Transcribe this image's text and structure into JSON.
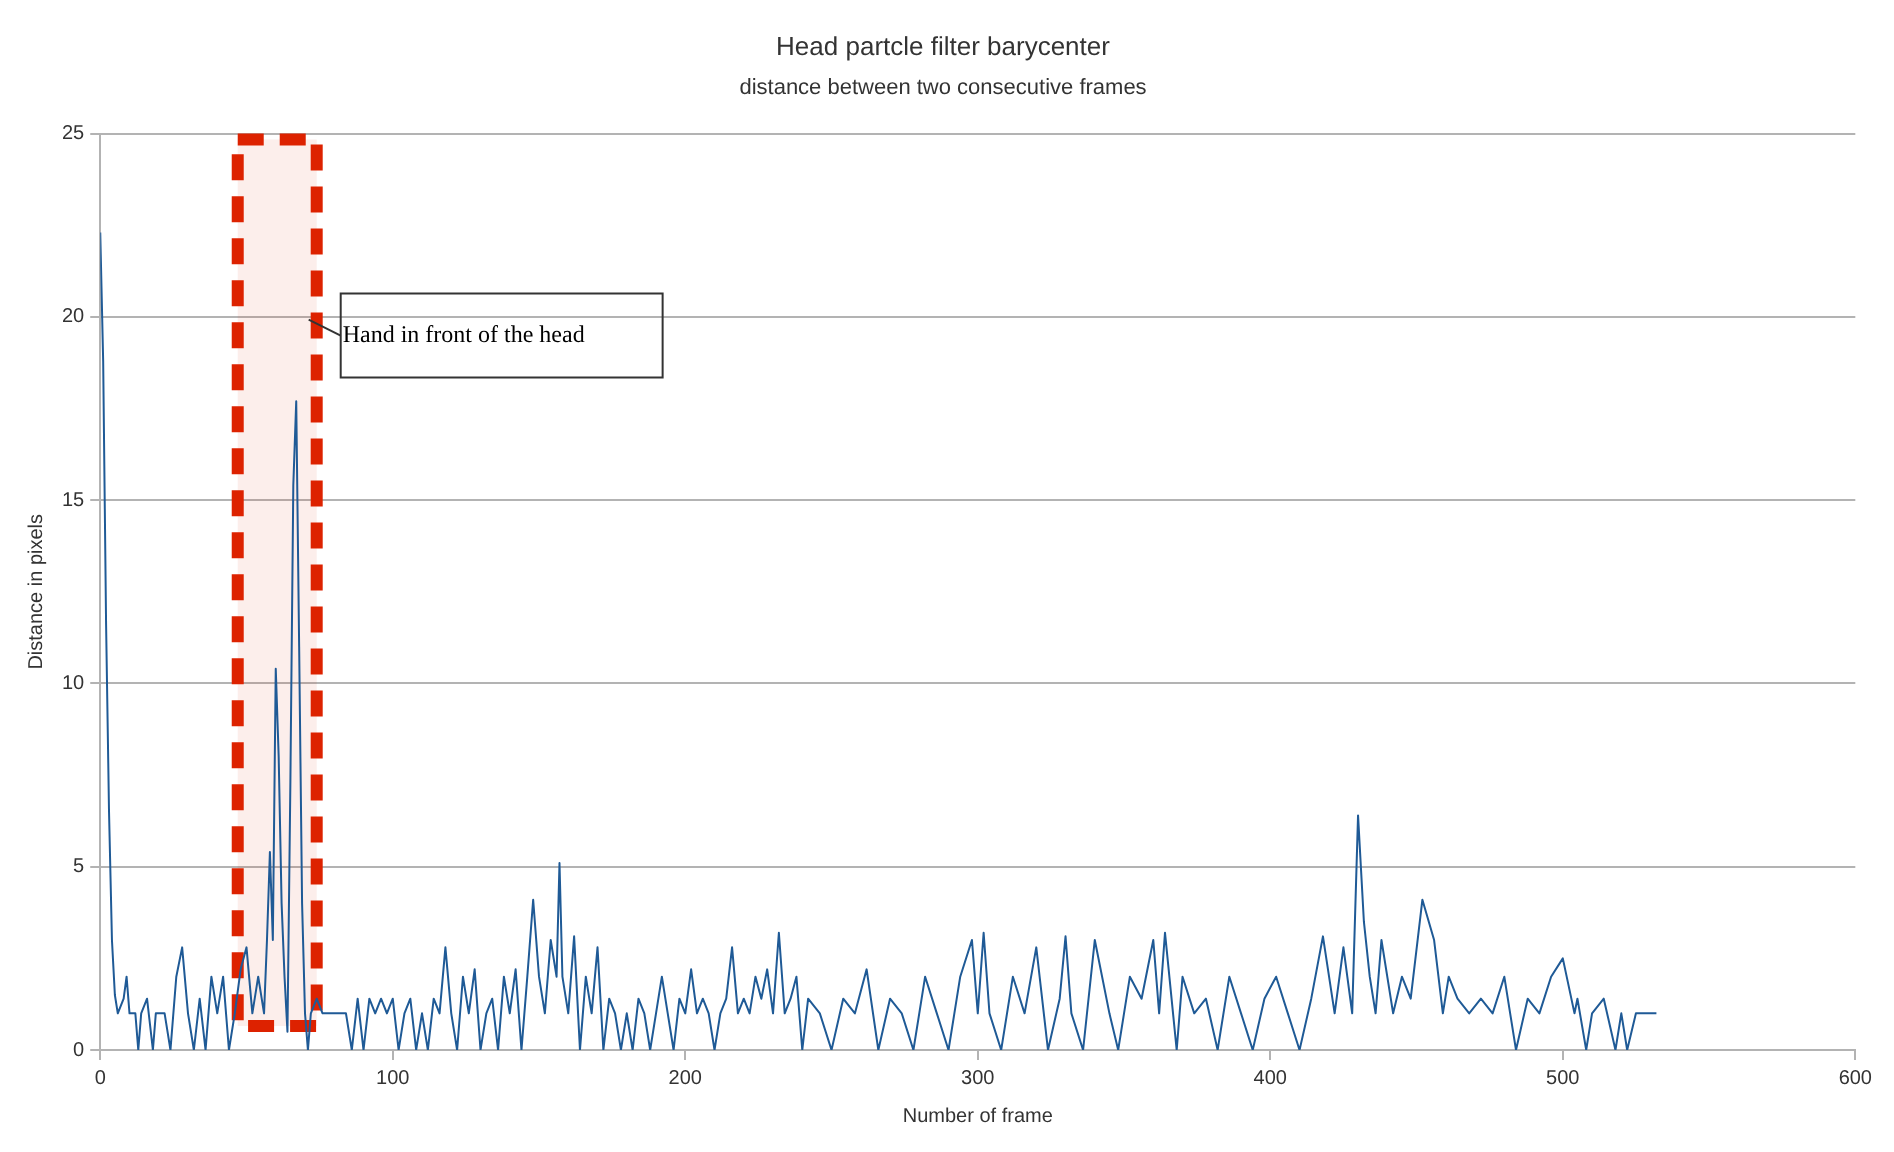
{
  "chart_data": {
    "type": "line",
    "title": "Head partcle filter barycenter",
    "subtitle": "distance between two consecutive frames",
    "xlabel": "Number of frame",
    "ylabel": "Distance in pixels",
    "xlim": [
      0,
      600
    ],
    "xticks": [
      0,
      100,
      200,
      300,
      400,
      500,
      600
    ],
    "ylim": [
      0,
      25
    ],
    "yticks": [
      0,
      5,
      10,
      15,
      20,
      25
    ],
    "grid": "y",
    "legend": false,
    "marker": "none",
    "line_style": "solid",
    "bands": [
      {
        "axis": "x",
        "from": 47,
        "to": 74,
        "label": "Hand in front of the head",
        "color": "#dd2200"
      }
    ],
    "series": [
      {
        "color": "#1f5a96",
        "x": [
          0,
          1,
          2,
          3,
          4,
          5,
          6,
          8,
          9,
          10,
          12,
          13,
          14,
          16,
          18,
          19,
          22,
          24,
          26,
          28,
          30,
          32,
          34,
          36,
          38,
          40,
          42,
          44,
          46,
          48,
          50,
          52,
          54,
          56,
          57,
          58,
          59,
          60,
          61,
          62,
          63,
          64,
          65,
          66,
          67,
          68,
          69,
          70,
          71,
          72,
          74,
          76,
          80,
          84,
          86,
          88,
          90,
          92,
          94,
          96,
          98,
          100,
          102,
          104,
          106,
          108,
          110,
          112,
          114,
          116,
          118,
          120,
          122,
          124,
          126,
          128,
          130,
          132,
          134,
          136,
          138,
          140,
          142,
          144,
          146,
          148,
          150,
          152,
          154,
          156,
          157,
          158,
          160,
          162,
          164,
          166,
          168,
          170,
          172,
          174,
          176,
          178,
          180,
          182,
          184,
          186,
          188,
          190,
          192,
          194,
          196,
          198,
          200,
          202,
          204,
          206,
          208,
          210,
          212,
          214,
          216,
          218,
          220,
          222,
          224,
          226,
          228,
          230,
          232,
          234,
          236,
          238,
          240,
          242,
          246,
          250,
          254,
          258,
          262,
          266,
          270,
          274,
          278,
          282,
          286,
          290,
          294,
          298,
          300,
          302,
          304,
          308,
          312,
          316,
          320,
          324,
          328,
          330,
          332,
          336,
          340,
          345,
          348,
          352,
          356,
          360,
          362,
          364,
          368,
          370,
          374,
          378,
          382,
          386,
          390,
          394,
          398,
          402,
          406,
          410,
          414,
          418,
          422,
          425,
          428,
          430,
          432,
          434,
          436,
          438,
          442,
          445,
          448,
          452,
          456,
          459,
          461,
          464,
          468,
          472,
          476,
          480,
          484,
          488,
          492,
          496,
          500,
          504,
          505,
          508,
          510,
          514,
          518,
          520,
          522,
          525,
          528,
          530,
          532
        ],
        "values": [
          22.3,
          18.8,
          11.6,
          6.5,
          3,
          1.5,
          1,
          1.4,
          2,
          1,
          1,
          0,
          1,
          1.4,
          0,
          1,
          1,
          0,
          2,
          2.8,
          1,
          0,
          1.4,
          0,
          2,
          1,
          2,
          0,
          1,
          2.2,
          2.8,
          1,
          2,
          1,
          3,
          5.4,
          3,
          10.4,
          8,
          4,
          2,
          0.5,
          7.3,
          15.4,
          17.7,
          11,
          4,
          1,
          0,
          1,
          1.4,
          1,
          1,
          1,
          0,
          1.4,
          0,
          1.4,
          1,
          1.4,
          1,
          1.4,
          0,
          1,
          1.4,
          0,
          1,
          0,
          1.4,
          1,
          2.8,
          1,
          0,
          2,
          1,
          2.2,
          0,
          1,
          1.4,
          0,
          2,
          1,
          2.2,
          0,
          2,
          4.1,
          2,
          1,
          3,
          2,
          5.1,
          2,
          1,
          3.1,
          0,
          2,
          1,
          2.8,
          0,
          1.4,
          1,
          0,
          1,
          0,
          1.4,
          1,
          0,
          1,
          2,
          1,
          0,
          1.4,
          1,
          2.2,
          1,
          1.4,
          1,
          0,
          1,
          1.4,
          2.8,
          1,
          1.4,
          1,
          2,
          1.4,
          2.2,
          1,
          3.2,
          1,
          1.4,
          2,
          0,
          1.4,
          1,
          0,
          1.4,
          1,
          2.2,
          0,
          1.4,
          1,
          0,
          2,
          1,
          0,
          2,
          3,
          1,
          3.2,
          1,
          0,
          2,
          1,
          2.8,
          0,
          1.4,
          3.1,
          1,
          0,
          3,
          1,
          0,
          2,
          1.4,
          3,
          1,
          3.2,
          0,
          2,
          1,
          1.4,
          0,
          2,
          1,
          0,
          1.4,
          2,
          1,
          0,
          1.4,
          3.1,
          1,
          2.8,
          1,
          6.4,
          3.5,
          2,
          1,
          3,
          1,
          2,
          1.4,
          4.1,
          3,
          1,
          2,
          1.4,
          1,
          1.4,
          1,
          2,
          0,
          1.4,
          1,
          2,
          2.5,
          1,
          1.4,
          0,
          1,
          1.4,
          0,
          1,
          0,
          1,
          1,
          1,
          1
        ]
      }
    ]
  }
}
